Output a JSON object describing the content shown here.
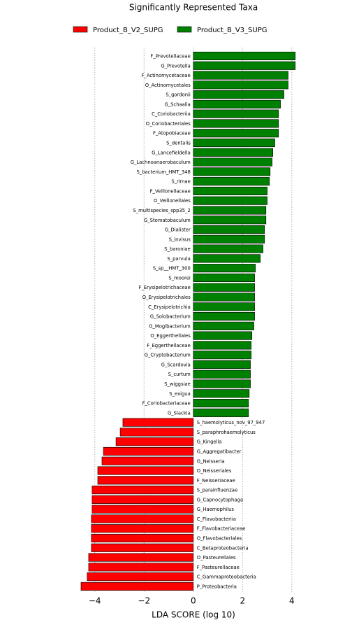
{
  "chart_data": {
    "type": "hbar",
    "title": "Significantly Represented Taxa",
    "xlabel": "LDA SCORE (log 10)",
    "xlim": [
      -4.9,
      4.6
    ],
    "xticks": [
      {
        "value": -4,
        "label": "−4"
      },
      {
        "value": -2,
        "label": "−2"
      },
      0,
      2,
      4
    ],
    "grid": true,
    "legend": "top",
    "series": [
      {
        "name": "Product_B_V2_SUPG",
        "color": "#ff0000",
        "categories": [
          "S_haemolyticus_nov_97_947",
          "S_paraphrohaemolyticus",
          "G_Kingella",
          "G_Aggregatibacter",
          "G_Neisseria",
          "O_Neisseriales",
          "F_Neisseriaceae",
          "S_parainfluenzae",
          "G_Capnocytophaga",
          "G_Haemophilus",
          "C_Flavobacteriia",
          "F_Flavobacteriaceae",
          "O_Flavobacteriales",
          "C_Betaproteobacteria",
          "O_Pasteurellales",
          "F_Pasteurellaceae",
          "C_Gammaproteobacteria",
          "P_Proteobacteria"
        ],
        "values": [
          -2.86,
          -2.97,
          -3.14,
          -3.65,
          -3.71,
          -3.88,
          -3.88,
          -4.11,
          -4.11,
          -4.11,
          -4.14,
          -4.14,
          -4.14,
          -4.14,
          -4.25,
          -4.25,
          -4.31,
          -4.56
        ]
      },
      {
        "name": "Product_B_V3_SUPG",
        "color": "#008000",
        "categories": [
          "F_Prevotellaceae",
          "G_Prevotella",
          "F_Actinomycetaceae",
          "O_Actinomycetales",
          "S_gordonii",
          "G_Schaalia",
          "C_Coriobacteriia",
          "O_Coriobacteriales",
          "F_Atopobiaceae",
          "S_dentalis",
          "G_Lancefieldella",
          "G_Lachnoanaerobaculum",
          "S_bacterium_HMT_348",
          "S_rimae",
          "F_Veillonellaceae",
          "O_Veillonellales",
          "S_multispecies_spp35_2",
          "G_Stomatobaculum",
          "G_Dialister",
          "S_invisus",
          "S_baroniae",
          "S_parvula",
          "S_sp__HMT_300",
          "S_moorei",
          "F_Erysipelotrichaceae",
          "O_Erysipelotrichales",
          "C_Erysipelotrichia",
          "G_Solobacterium",
          "G_Mogibacterium",
          "O_Eggerthellales",
          "F_Eggerthellaceae",
          "G_Cryptobacterium",
          "G_Scardovia",
          "S_curtum",
          "S_wiggsiae",
          "S_exigua",
          "F_Coriobacteriaceae",
          "G_Slackia"
        ],
        "values": [
          4.14,
          4.14,
          3.85,
          3.85,
          3.68,
          3.54,
          3.46,
          3.46,
          3.46,
          3.31,
          3.23,
          3.2,
          3.12,
          3.09,
          3.0,
          3.0,
          2.95,
          2.95,
          2.89,
          2.89,
          2.83,
          2.72,
          2.52,
          2.49,
          2.49,
          2.49,
          2.49,
          2.49,
          2.46,
          2.38,
          2.35,
          2.35,
          2.32,
          2.32,
          2.32,
          2.27,
          2.24,
          2.24
        ]
      }
    ]
  }
}
